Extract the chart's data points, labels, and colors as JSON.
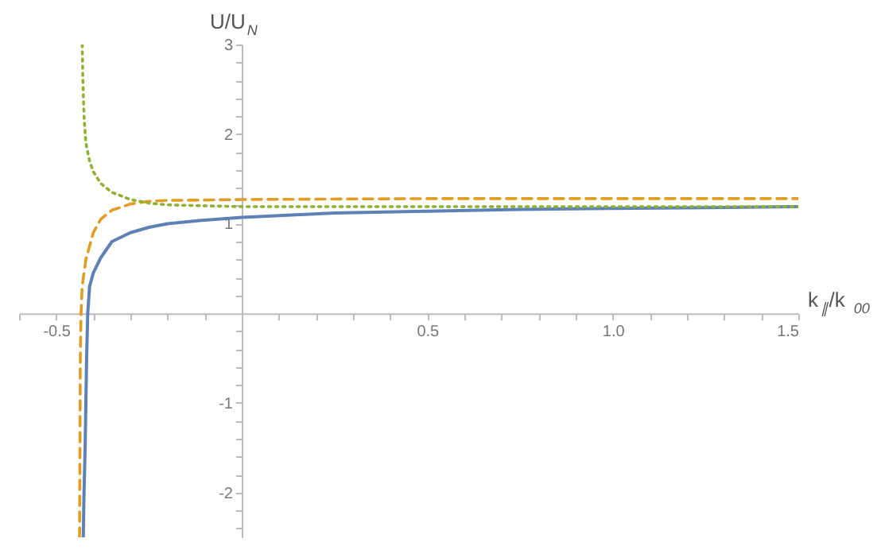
{
  "chart_data": {
    "type": "line",
    "xlabel": "k$_{∥}$/k$_{00}$",
    "ylabel": "U/U$_{N}$",
    "xlim": [
      -0.6,
      1.5
    ],
    "ylim": [
      -2.5,
      3
    ],
    "xticks": [
      {
        "value": -0.6,
        "label": null
      },
      -0.5,
      {
        "value": -0.4,
        "label": null
      },
      {
        "value": -0.3,
        "label": null
      },
      {
        "value": -0.2,
        "label": null
      },
      {
        "value": -0.1,
        "label": null
      },
      {
        "value": 0.1,
        "label": null
      },
      {
        "value": 0.2,
        "label": null
      },
      {
        "value": 0.3,
        "label": null
      },
      {
        "value": 0.4,
        "label": null
      },
      0.5,
      {
        "value": 0.6,
        "label": null
      },
      {
        "value": 0.7,
        "label": null
      },
      {
        "value": 0.8,
        "label": null
      },
      {
        "value": 0.9,
        "label": null
      },
      {
        "value": 1.0,
        "label": "1.0"
      },
      {
        "value": 1.1,
        "label": null
      },
      {
        "value": 1.2,
        "label": null
      },
      {
        "value": 1.3,
        "label": null
      },
      {
        "value": 1.4,
        "label": null
      },
      1.5
    ],
    "yticks": [
      {
        "value": -2.4,
        "label": null
      },
      {
        "value": -2.2,
        "label": null
      },
      -2,
      {
        "value": -1.8,
        "label": null
      },
      {
        "value": -1.6,
        "label": null
      },
      {
        "value": -1.4,
        "label": null
      },
      {
        "value": -1.2,
        "label": null
      },
      -1,
      {
        "value": -0.8,
        "label": null
      },
      {
        "value": -0.6,
        "label": null
      },
      {
        "value": -0.4,
        "label": null
      },
      {
        "value": -0.2,
        "label": null
      },
      {
        "value": 0.2,
        "label": null
      },
      {
        "value": 0.4,
        "label": null
      },
      {
        "value": 0.6,
        "label": null
      },
      {
        "value": 0.8,
        "label": null
      },
      1,
      {
        "value": 1.2,
        "label": null
      },
      {
        "value": 1.4,
        "label": null
      },
      {
        "value": 1.6,
        "label": null
      },
      {
        "value": 1.8,
        "label": null
      },
      2,
      {
        "value": 2.2,
        "label": null
      },
      {
        "value": 2.4,
        "label": null
      },
      {
        "value": 2.6,
        "label": null
      },
      {
        "value": 2.8,
        "label": null
      },
      3
    ],
    "grid": false,
    "legend": false,
    "marker": "none",
    "series": [
      {
        "color": "#5e81b5",
        "line_style": "solid",
        "x": [
          -0.427,
          -0.425,
          -0.422,
          -0.42,
          -0.418,
          -0.415,
          -0.41,
          -0.4,
          -0.38,
          -0.35,
          -0.3,
          -0.25,
          -0.2,
          -0.1,
          0,
          0.25,
          0.5,
          0.75,
          1.0,
          1.25,
          1.5
        ],
        "values": [
          -2.5,
          -2.0,
          -1.5,
          -1.0,
          -0.5,
          0,
          0.3,
          0.45,
          0.62,
          0.8,
          0.9,
          0.96,
          1.0,
          1.04,
          1.07,
          1.12,
          1.14,
          1.16,
          1.17,
          1.18,
          1.19
        ]
      },
      {
        "color": "#e19c24",
        "line_style": "dashed",
        "x": [
          -0.437,
          -0.436,
          -0.435,
          -0.433,
          -0.43,
          -0.42,
          -0.4,
          -0.38,
          -0.35,
          -0.3,
          -0.25,
          -0.2,
          0,
          0.5,
          1.0,
          1.5
        ],
        "values": [
          -2.5,
          -1.5,
          -0.5,
          0,
          0.3,
          0.6,
          0.9,
          1.05,
          1.15,
          1.22,
          1.25,
          1.26,
          1.27,
          1.28,
          1.28,
          1.28
        ]
      },
      {
        "color": "#8fb032",
        "line_style": "dotted",
        "x": [
          -0.43,
          -0.428,
          -0.425,
          -0.42,
          -0.41,
          -0.4,
          -0.38,
          -0.35,
          -0.3,
          -0.25,
          -0.2,
          -0.1,
          0,
          0.5,
          1.0,
          1.5
        ],
        "values": [
          3.0,
          2.6,
          2.2,
          1.9,
          1.7,
          1.58,
          1.45,
          1.35,
          1.27,
          1.23,
          1.21,
          1.2,
          1.19,
          1.19,
          1.19,
          1.19
        ]
      }
    ]
  }
}
